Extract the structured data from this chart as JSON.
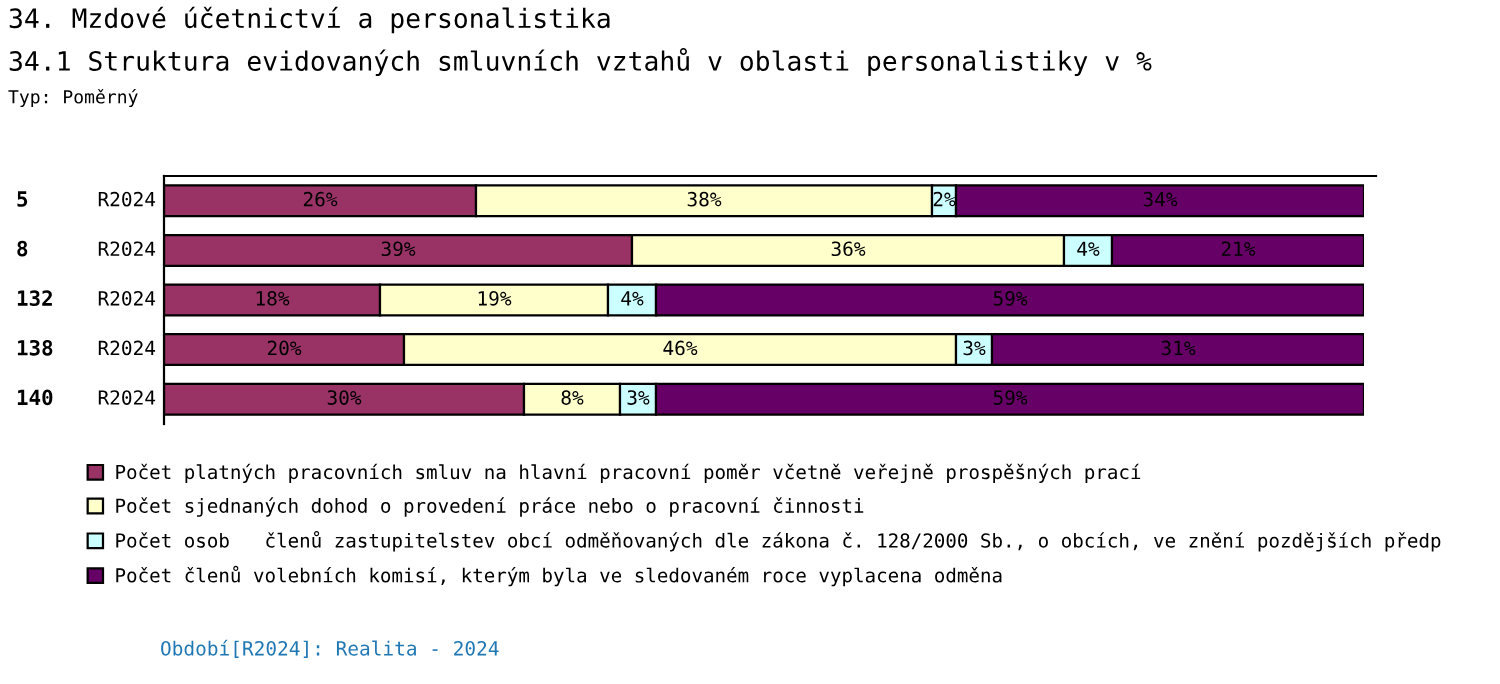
{
  "chart_data": {
    "type": "bar",
    "orientation": "horizontal",
    "stacked": true,
    "legend": "bottom",
    "grid": false,
    "title": "34. Mzdové účetnictví a personalistika",
    "subtitle": "34.1 Struktura evidovaných smluvních vztahů v oblasti personalistiky v %",
    "annotations": [
      "Typ: Poměrný",
      "Období[R2024]: Realita - 2024"
    ],
    "categories": [
      "5 R2024",
      "8 R2024",
      "132 R2024",
      "138 R2024",
      "140 R2024"
    ],
    "series": [
      {
        "name": "Počet platných pracovních smluv na hlavní pracovní poměr včetně veřejně prospěšných prací",
        "color": "#993366",
        "values": [
          26,
          39,
          18,
          20,
          30
        ],
        "value_labels": [
          "26%",
          "39%",
          "18%",
          "20%",
          "30%"
        ]
      },
      {
        "name": "Počet sjednaných dohod o provedení práce nebo o pracovní činnosti",
        "color": "#ffffcc",
        "values": [
          38,
          36,
          19,
          46,
          8
        ],
        "value_labels": [
          "38%",
          "36%",
          "19%",
          "46%",
          "8%"
        ]
      },
      {
        "name": "Počet osob   členů zastupitelstev obcí odměňovaných dle zákona č. 128/2000 Sb., o obcích, ve znění pozdějších předp",
        "color": "#ccffff",
        "values": [
          2,
          4,
          4,
          3,
          3
        ],
        "value_labels": [
          "2%",
          "4%",
          "4%",
          "3%",
          "3%"
        ]
      },
      {
        "name": "Počet členů volebních komisí, kterým byla ve sledovaném roce vyplacena odměna",
        "color": "#660066",
        "values": [
          34,
          21,
          59,
          31,
          59
        ],
        "value_labels": [
          "34%",
          "21%",
          "59%",
          "31%",
          "59%"
        ]
      }
    ]
  }
}
